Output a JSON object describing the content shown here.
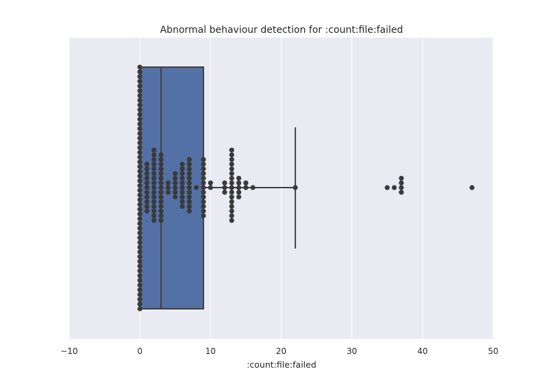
{
  "chart_data": {
    "type": "box",
    "title": "Abnormal behaviour detection for :count:file:failed",
    "xlabel": ":count:file:failed",
    "ylabel": "",
    "xlim": [
      -10,
      50
    ],
    "xticks": [
      -10,
      0,
      10,
      20,
      30,
      40,
      50
    ],
    "xtick_labels": [
      "−10",
      "0",
      "10",
      "20",
      "30",
      "40",
      "50"
    ],
    "grid": true,
    "orientation": "horizontal",
    "box": {
      "min": 0,
      "q1": 0,
      "median": 3,
      "q3": 9,
      "whisker_high": 22,
      "outliers": [
        35,
        36,
        37,
        47
      ]
    },
    "swarm_points": [
      {
        "value": 0,
        "count": 52
      },
      {
        "value": 1,
        "count": 11
      },
      {
        "value": 2,
        "count": 16
      },
      {
        "value": 3,
        "count": 15
      },
      {
        "value": 4,
        "count": 3
      },
      {
        "value": 5,
        "count": 6
      },
      {
        "value": 6,
        "count": 10
      },
      {
        "value": 7,
        "count": 12
      },
      {
        "value": 8,
        "count": 1
      },
      {
        "value": 9,
        "count": 13
      },
      {
        "value": 10,
        "count": 2
      },
      {
        "value": 12,
        "count": 3
      },
      {
        "value": 13,
        "count": 16
      },
      {
        "value": 14,
        "count": 5
      },
      {
        "value": 15,
        "count": 2
      },
      {
        "value": 16,
        "count": 1
      },
      {
        "value": 22,
        "count": 1
      },
      {
        "value": 35,
        "count": 1
      },
      {
        "value": 36,
        "count": 1
      },
      {
        "value": 37,
        "count": 4
      },
      {
        "value": 47,
        "count": 1
      }
    ],
    "colors": {
      "background": "#eaeaf2",
      "grid": "#ffffff",
      "box_fill": "#5471a5",
      "box_edge": "#3f3f3f",
      "points": "#3a3a3a"
    }
  }
}
